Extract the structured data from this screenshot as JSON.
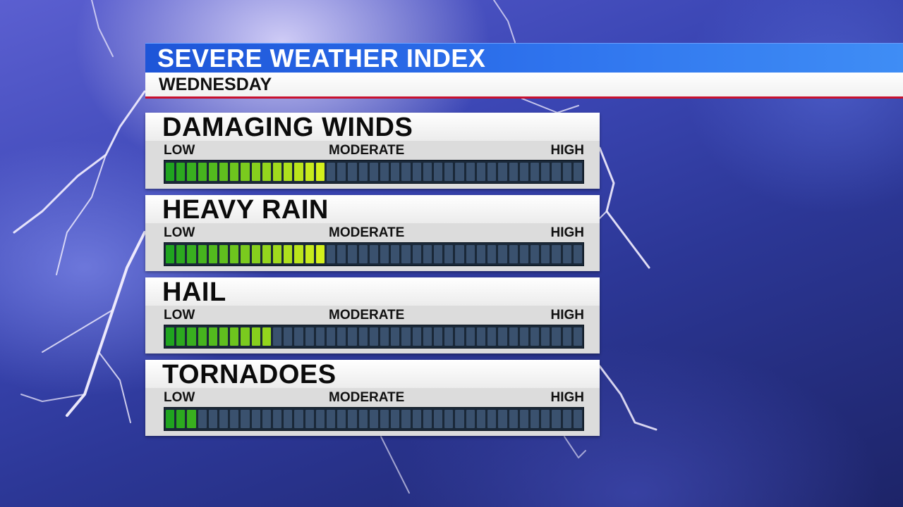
{
  "header": {
    "title": "SEVERE WEATHER INDEX",
    "subtitle": "WEDNESDAY"
  },
  "scale_labels": {
    "low": "LOW",
    "moderate": "MODERATE",
    "high": "HIGH"
  },
  "meter_segments": 39,
  "colors": {
    "green": "#1fa41f",
    "yellow_green": "#c8ef20",
    "empty": "#3a516e",
    "accent_red": "#c8102e",
    "title_blue": "#2f74ee"
  },
  "categories": [
    {
      "name": "DAMAGING WINDS",
      "filled_segments": 15
    },
    {
      "name": "HEAVY RAIN",
      "filled_segments": 15
    },
    {
      "name": "HAIL",
      "filled_segments": 10
    },
    {
      "name": "TORNADOES",
      "filled_segments": 3
    }
  ]
}
